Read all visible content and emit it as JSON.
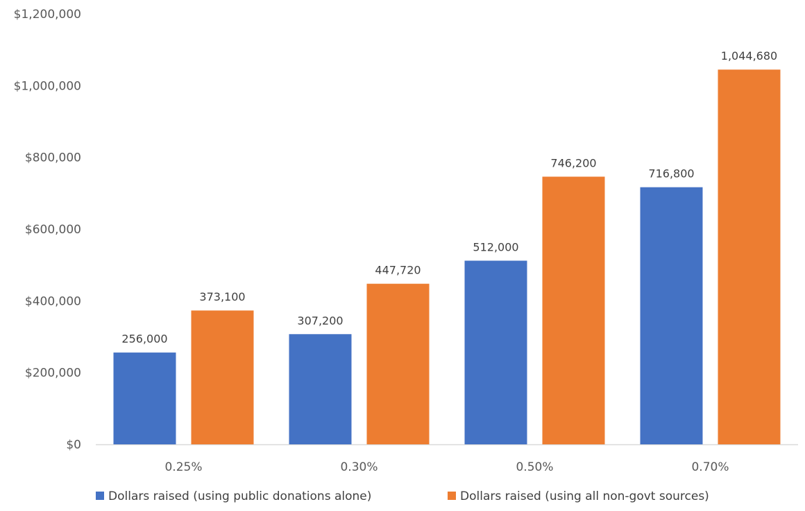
{
  "chart_data": {
    "type": "bar",
    "title": "",
    "xlabel": "",
    "ylabel": "",
    "categories": [
      "0.25%",
      "0.30%",
      "0.50%",
      "0.70%"
    ],
    "series": [
      {
        "name": "Dollars raised (using public donations alone)",
        "color": "#4472C4",
        "values": [
          256000,
          307200,
          512000,
          716800
        ],
        "labels": [
          "256,000",
          "307,200",
          "512,000",
          "716,800"
        ]
      },
      {
        "name": "Dollars raised (using all non-govt sources)",
        "color": "#ED7D31",
        "values": [
          373100,
          447720,
          746200,
          1044680
        ],
        "labels": [
          "373,100",
          "447,720",
          "746,200",
          "1,044,680"
        ]
      }
    ],
    "ylim": [
      0,
      1200000
    ],
    "yticks": [
      0,
      200000,
      400000,
      600000,
      800000,
      1000000,
      1200000
    ],
    "ytick_labels": [
      "$0",
      "$200,000",
      "$400,000",
      "$600,000",
      "$800,000",
      "$1,000,000",
      "$1,200,000"
    ],
    "grid": false,
    "legend_position": "bottom"
  }
}
